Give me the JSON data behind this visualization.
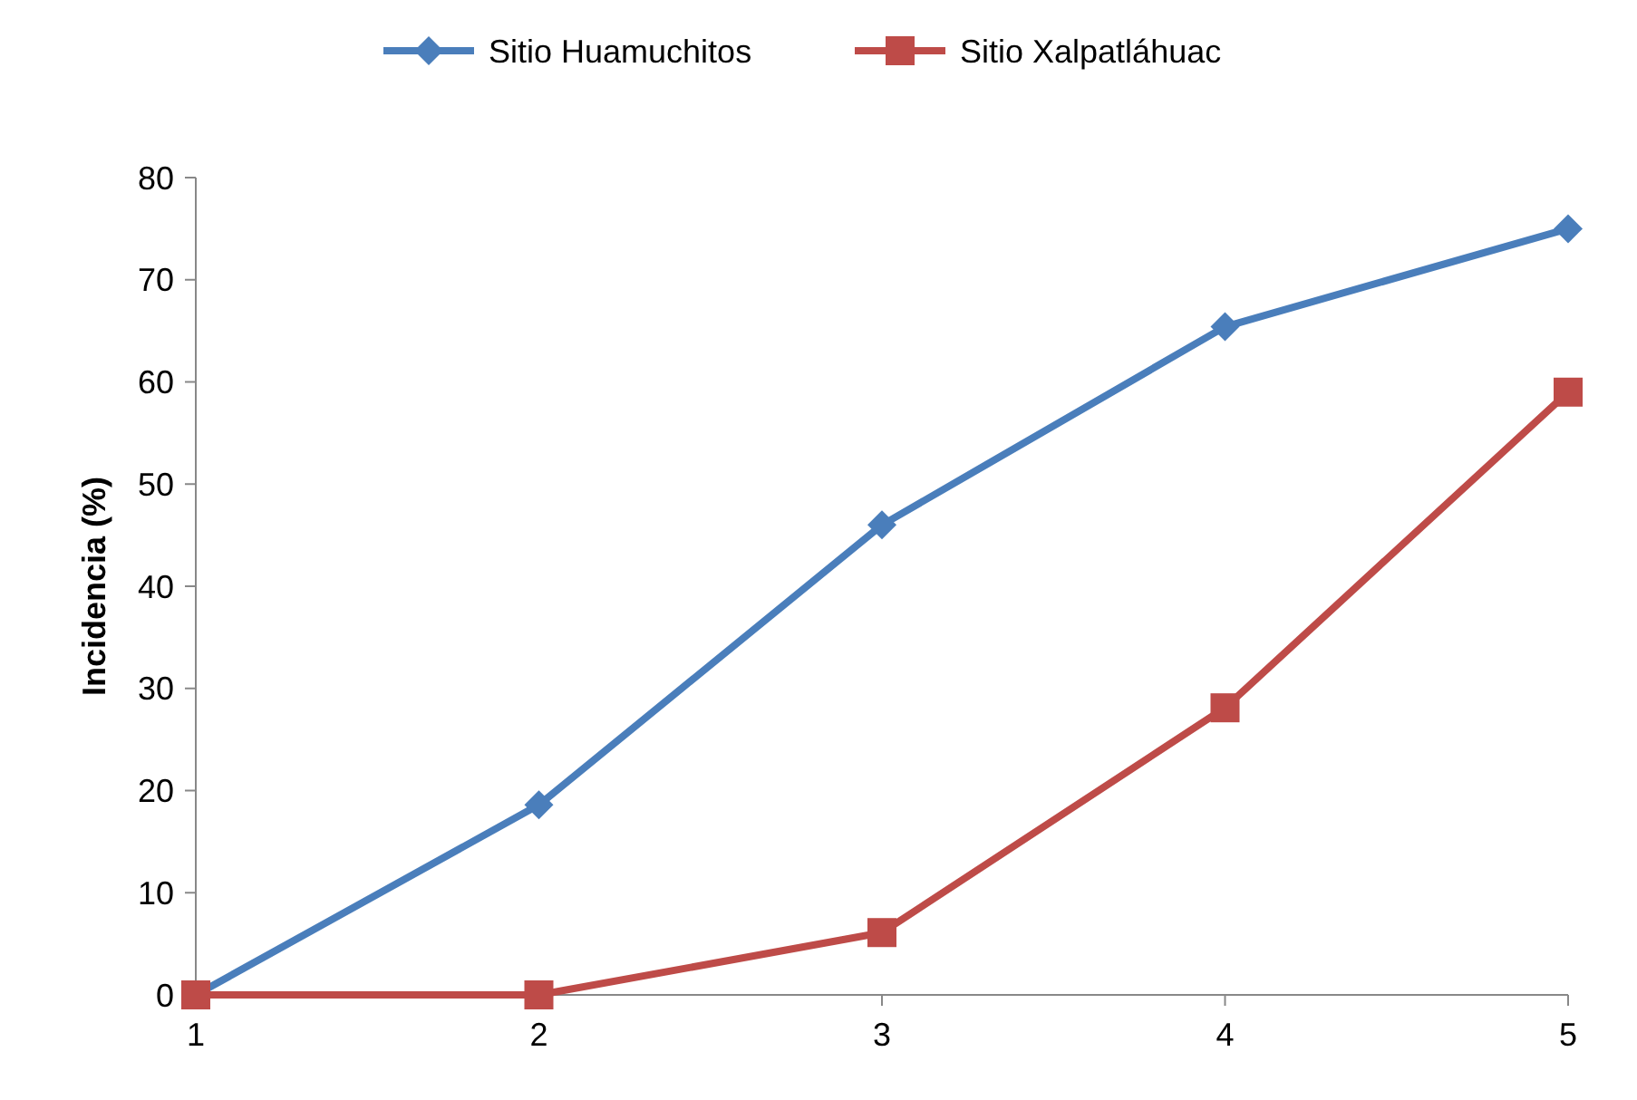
{
  "chart_data": {
    "type": "line",
    "ylabel": "Incidencia (%)",
    "x": [
      1,
      2,
      3,
      4,
      5
    ],
    "xlim": [
      1,
      5
    ],
    "xticks": [
      1,
      2,
      3,
      4,
      5
    ],
    "ylim": [
      0,
      80
    ],
    "yticks": [
      0,
      10,
      20,
      30,
      40,
      50,
      60,
      70,
      80
    ],
    "grid": false,
    "legend": "top",
    "series": [
      {
        "name": "Sitio Huamuchitos",
        "color": "#4a7ebb",
        "marker": "diamond",
        "values": [
          0,
          18.6,
          46.0,
          65.4,
          75.0
        ]
      },
      {
        "name": "Sitio Xalpatláhuac",
        "color": "#be4b48",
        "marker": "square",
        "values": [
          0,
          0,
          6.1,
          28.1,
          59.0
        ]
      }
    ]
  }
}
